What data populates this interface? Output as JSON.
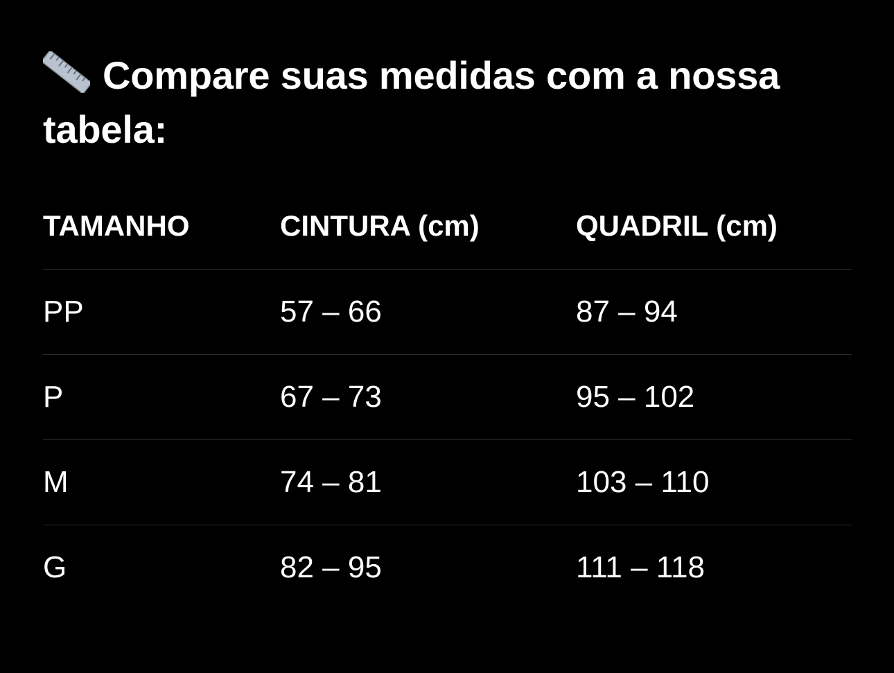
{
  "title": {
    "icon": "ruler-icon",
    "text": "Compare suas medidas com a nossa tabela:"
  },
  "table": {
    "headers": [
      "TAMANHO",
      "CINTURA (cm)",
      "QUADRIL (cm)"
    ],
    "rows": [
      [
        "PP",
        "57 – 66",
        "87 – 94"
      ],
      [
        "P",
        "67 – 73",
        "95 – 102"
      ],
      [
        "M",
        "74 – 81",
        "103 – 110"
      ],
      [
        "G",
        "82 – 95",
        "111 – 118"
      ]
    ]
  },
  "colors": {
    "background": "#000000",
    "text": "#ffffff",
    "divider": "#2b2b2b"
  }
}
